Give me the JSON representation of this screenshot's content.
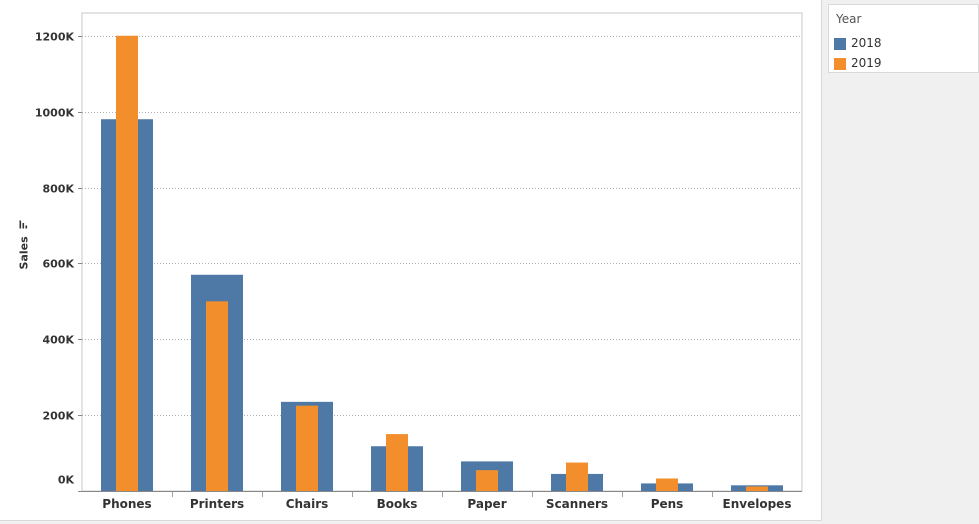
{
  "chart_data": {
    "type": "bar",
    "title": "",
    "xlabel": "",
    "ylabel": "Sales",
    "ylim": [
      0,
      1260000
    ],
    "yticks": [
      0,
      200000,
      400000,
      600000,
      800000,
      1000000,
      1200000
    ],
    "ytick_labels": [
      "0K",
      "200K",
      "400K",
      "600K",
      "800K",
      "1000K",
      "1200K"
    ],
    "categories": [
      "Phones",
      "Printers",
      "Chairs",
      "Books",
      "Paper",
      "Scanners",
      "Pens",
      "Envelopes"
    ],
    "series": [
      {
        "name": "2018",
        "color": "#4e79a7",
        "values": [
          980000,
          570000,
          235000,
          118000,
          78000,
          45000,
          20000,
          15000
        ]
      },
      {
        "name": "2019",
        "color": "#f28e2b",
        "values": [
          1200000,
          500000,
          225000,
          150000,
          55000,
          75000,
          33000,
          12000
        ]
      }
    ],
    "grid": true,
    "legend_position": "top-right",
    "bar_layout": "overlapping"
  },
  "legend": {
    "title": "Year",
    "items": [
      {
        "label": "2018",
        "color": "#4e79a7"
      },
      {
        "label": "2019",
        "color": "#f28e2b"
      }
    ]
  },
  "axis": {
    "y_title": "Sales",
    "sort_icon": "sort-descending-icon"
  }
}
